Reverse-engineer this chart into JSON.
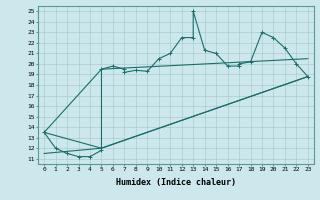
{
  "xlabel": "Humidex (Indice chaleur)",
  "bg_color": "#cce8ec",
  "grid_color": "#aacccc",
  "line_color": "#1a6e6a",
  "xlim": [
    -0.5,
    23.5
  ],
  "ylim": [
    10.5,
    25.5
  ],
  "xticks": [
    0,
    1,
    2,
    3,
    4,
    5,
    6,
    7,
    8,
    9,
    10,
    11,
    12,
    13,
    14,
    15,
    16,
    17,
    18,
    19,
    20,
    21,
    22,
    23
  ],
  "yticks": [
    11,
    12,
    13,
    14,
    15,
    16,
    17,
    18,
    19,
    20,
    21,
    22,
    23,
    24,
    25
  ],
  "line1_x": [
    0,
    1,
    2,
    3,
    4,
    5,
    5,
    6,
    7,
    7,
    8,
    9,
    10,
    11,
    12,
    13,
    13,
    14,
    15,
    16,
    17,
    17,
    18,
    19,
    20,
    21,
    22,
    23
  ],
  "line1_y": [
    13.5,
    12.0,
    11.5,
    11.2,
    11.2,
    11.8,
    19.5,
    19.8,
    19.5,
    19.2,
    19.4,
    19.3,
    20.5,
    21.0,
    22.5,
    22.5,
    25.0,
    21.3,
    21.0,
    19.8,
    19.8,
    20.0,
    20.2,
    23.0,
    22.5,
    21.5,
    20.0,
    18.8
  ],
  "line2_x": [
    0,
    5,
    23
  ],
  "line2_y": [
    13.5,
    12.0,
    18.8
  ],
  "line3_x": [
    0,
    5,
    23
  ],
  "line3_y": [
    11.5,
    12.0,
    18.8
  ],
  "line4_x": [
    0,
    5,
    23
  ],
  "line4_y": [
    13.5,
    19.5,
    20.5
  ]
}
